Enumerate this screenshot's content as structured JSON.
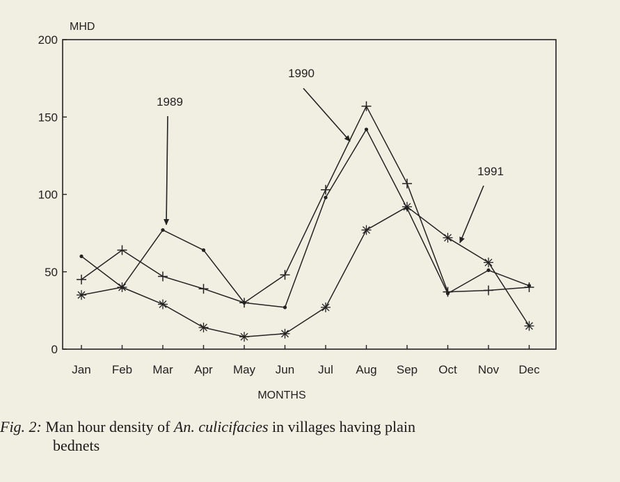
{
  "chart_data": {
    "type": "line",
    "ylabel": "MHD",
    "xlabel": "MONTHS",
    "ylim": [
      0,
      200
    ],
    "yticks": [
      0,
      50,
      100,
      150,
      200
    ],
    "categories": [
      "Jan",
      "Feb",
      "Mar",
      "Apr",
      "May",
      "Jun",
      "Jul",
      "Aug",
      "Sep",
      "Oct",
      "Nov",
      "Dec"
    ],
    "series": [
      {
        "name": "1989",
        "marker": "dot",
        "values": [
          60,
          40,
          77,
          64,
          30,
          27,
          98,
          142,
          91,
          36,
          51,
          41
        ]
      },
      {
        "name": "1990",
        "marker": "plus",
        "values": [
          45,
          64,
          47,
          39,
          30,
          48,
          103,
          157,
          107,
          37,
          38,
          40
        ]
      },
      {
        "name": "1991",
        "marker": "asterisk",
        "values": [
          35,
          40,
          29,
          14,
          8,
          10,
          27,
          77,
          92,
          72,
          56,
          15
        ]
      }
    ],
    "grid": false,
    "legend": "annotations"
  },
  "caption": {
    "label": "Fig. 2:",
    "text_before": " Man hour density of ",
    "species": "An. culicifacies",
    "text_after": "  in villages having plain",
    "line2": "bednets"
  }
}
